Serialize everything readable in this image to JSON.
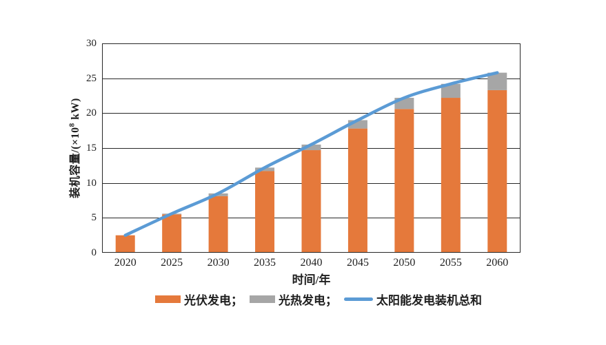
{
  "page": {
    "background": "#ffffff",
    "text_color": "#1f1f1f",
    "axis_color": "#262626"
  },
  "chart_data": {
    "type": "bar",
    "subtype": "stacked-bars-with-total-line",
    "title": "",
    "categories": [
      "2020",
      "2025",
      "2030",
      "2035",
      "2040",
      "2045",
      "2050",
      "2055",
      "2060"
    ],
    "series": [
      {
        "name": "光伏发电",
        "type": "bar",
        "color": "#E5793B",
        "values": [
          2.5,
          5.5,
          8.1,
          11.7,
          14.7,
          17.8,
          20.6,
          22.2,
          23.3
        ]
      },
      {
        "name": "光热发电",
        "type": "bar",
        "color": "#A6A6A6",
        "values": [
          0,
          0.1,
          0.4,
          0.5,
          0.8,
          1.2,
          1.6,
          2.0,
          2.5
        ]
      },
      {
        "name": "太阳能发电装机总和",
        "type": "line",
        "color": "#5B9BD5",
        "values": [
          2.5,
          5.6,
          8.5,
          12.2,
          15.5,
          19.0,
          22.2,
          24.2,
          25.8
        ]
      }
    ],
    "xlabel": "时间/年",
    "ylabel": "装机容量/(×10⁸ kW)",
    "ylabel_prefix": "装机容量/(×10",
    "ylabel_sup": "8",
    "ylabel_suffix": " kW)",
    "ylim": [
      0,
      30
    ],
    "yticks": [
      0,
      5,
      10,
      15,
      20,
      25,
      30
    ],
    "grid": true,
    "legend_position": "bottom",
    "legend": [
      {
        "label": "光伏发电；",
        "swatch": "bar",
        "color": "#E5793B"
      },
      {
        "label": "光热发电；",
        "swatch": "bar",
        "color": "#A6A6A6"
      },
      {
        "label": "太阳能发电装机总和",
        "swatch": "line",
        "color": "#5B9BD5"
      }
    ]
  }
}
